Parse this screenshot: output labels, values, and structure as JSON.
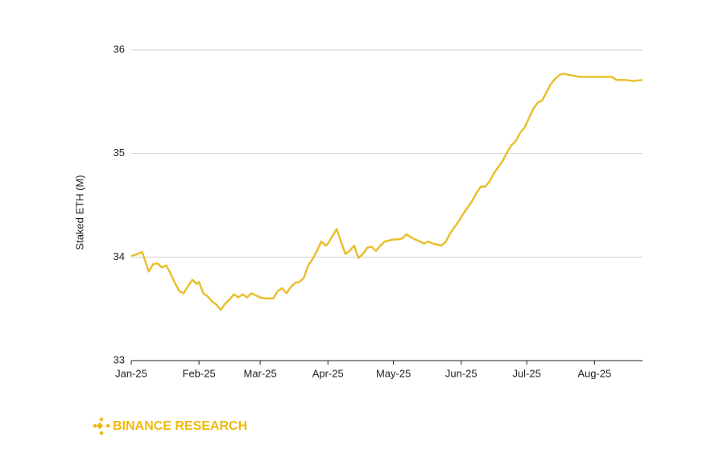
{
  "chart_data": {
    "type": "line",
    "ylabel": "Staked ETH (M)",
    "source": "BINANCE RESEARCH",
    "xlim": [
      0,
      234
    ],
    "xticks": [
      {
        "value": 0,
        "label": "Jan-25"
      },
      {
        "value": 31,
        "label": "Feb-25"
      },
      {
        "value": 59,
        "label": "Mar-25"
      },
      {
        "value": 90,
        "label": "Apr-25"
      },
      {
        "value": 120,
        "label": "May-25"
      },
      {
        "value": 151,
        "label": "Jun-25"
      },
      {
        "value": 181,
        "label": "Jul-25"
      },
      {
        "value": 212,
        "label": "Aug-25"
      }
    ],
    "ylim": [
      33,
      36
    ],
    "yticks": [
      33,
      34,
      35,
      36
    ],
    "grid": true,
    "x": [
      0,
      3,
      5,
      8,
      10,
      12,
      14,
      16,
      18,
      20,
      22,
      24,
      26,
      28,
      30,
      31,
      33,
      35,
      37,
      39,
      41,
      43,
      45,
      47,
      49,
      51,
      53,
      55,
      57,
      59,
      61,
      63,
      65,
      67,
      69,
      71,
      73,
      75,
      77,
      79,
      81,
      83,
      85,
      87,
      89,
      90,
      92,
      94,
      96,
      98,
      100,
      102,
      104,
      106,
      108,
      110,
      112,
      114,
      116,
      118,
      120,
      122,
      124,
      126,
      128,
      130,
      132,
      134,
      136,
      138,
      140,
      142,
      144,
      146,
      148,
      150,
      152,
      154,
      156,
      158,
      160,
      162,
      164,
      166,
      168,
      170,
      172,
      174,
      176,
      178,
      180,
      182,
      184,
      186,
      188,
      190,
      192,
      194,
      196,
      198,
      200,
      205,
      210,
      215,
      220,
      222,
      226,
      230,
      234
    ],
    "series": [
      {
        "name": "Staked ETH",
        "color": "#e8c02f",
        "values": [
          34.01,
          34.03,
          34.05,
          33.86,
          33.93,
          33.94,
          33.9,
          33.92,
          33.84,
          33.75,
          33.67,
          33.65,
          33.72,
          33.78,
          33.74,
          33.76,
          33.65,
          33.62,
          33.57,
          33.54,
          33.49,
          33.55,
          33.59,
          33.64,
          33.61,
          33.64,
          33.61,
          33.65,
          33.63,
          33.61,
          33.6,
          33.6,
          33.6,
          33.67,
          33.7,
          33.65,
          33.71,
          33.75,
          33.76,
          33.8,
          33.92,
          33.98,
          34.06,
          34.15,
          34.11,
          34.13,
          34.2,
          34.27,
          34.15,
          34.03,
          34.06,
          34.11,
          33.99,
          34.03,
          34.09,
          34.1,
          34.06,
          34.11,
          34.15,
          34.16,
          34.17,
          34.17,
          34.18,
          34.22,
          34.19,
          34.17,
          34.15,
          34.13,
          34.15,
          34.13,
          34.12,
          34.11,
          34.15,
          34.23,
          34.29,
          34.35,
          34.42,
          34.48,
          34.54,
          34.62,
          34.68,
          34.68,
          34.73,
          34.81,
          34.87,
          34.93,
          35.01,
          35.08,
          35.12,
          35.2,
          35.25,
          35.34,
          35.43,
          35.49,
          35.51,
          35.59,
          35.67,
          35.72,
          35.76,
          35.77,
          35.76,
          35.74,
          35.74,
          35.74,
          35.74,
          35.71,
          35.71,
          35.7,
          35.71
        ]
      }
    ]
  }
}
